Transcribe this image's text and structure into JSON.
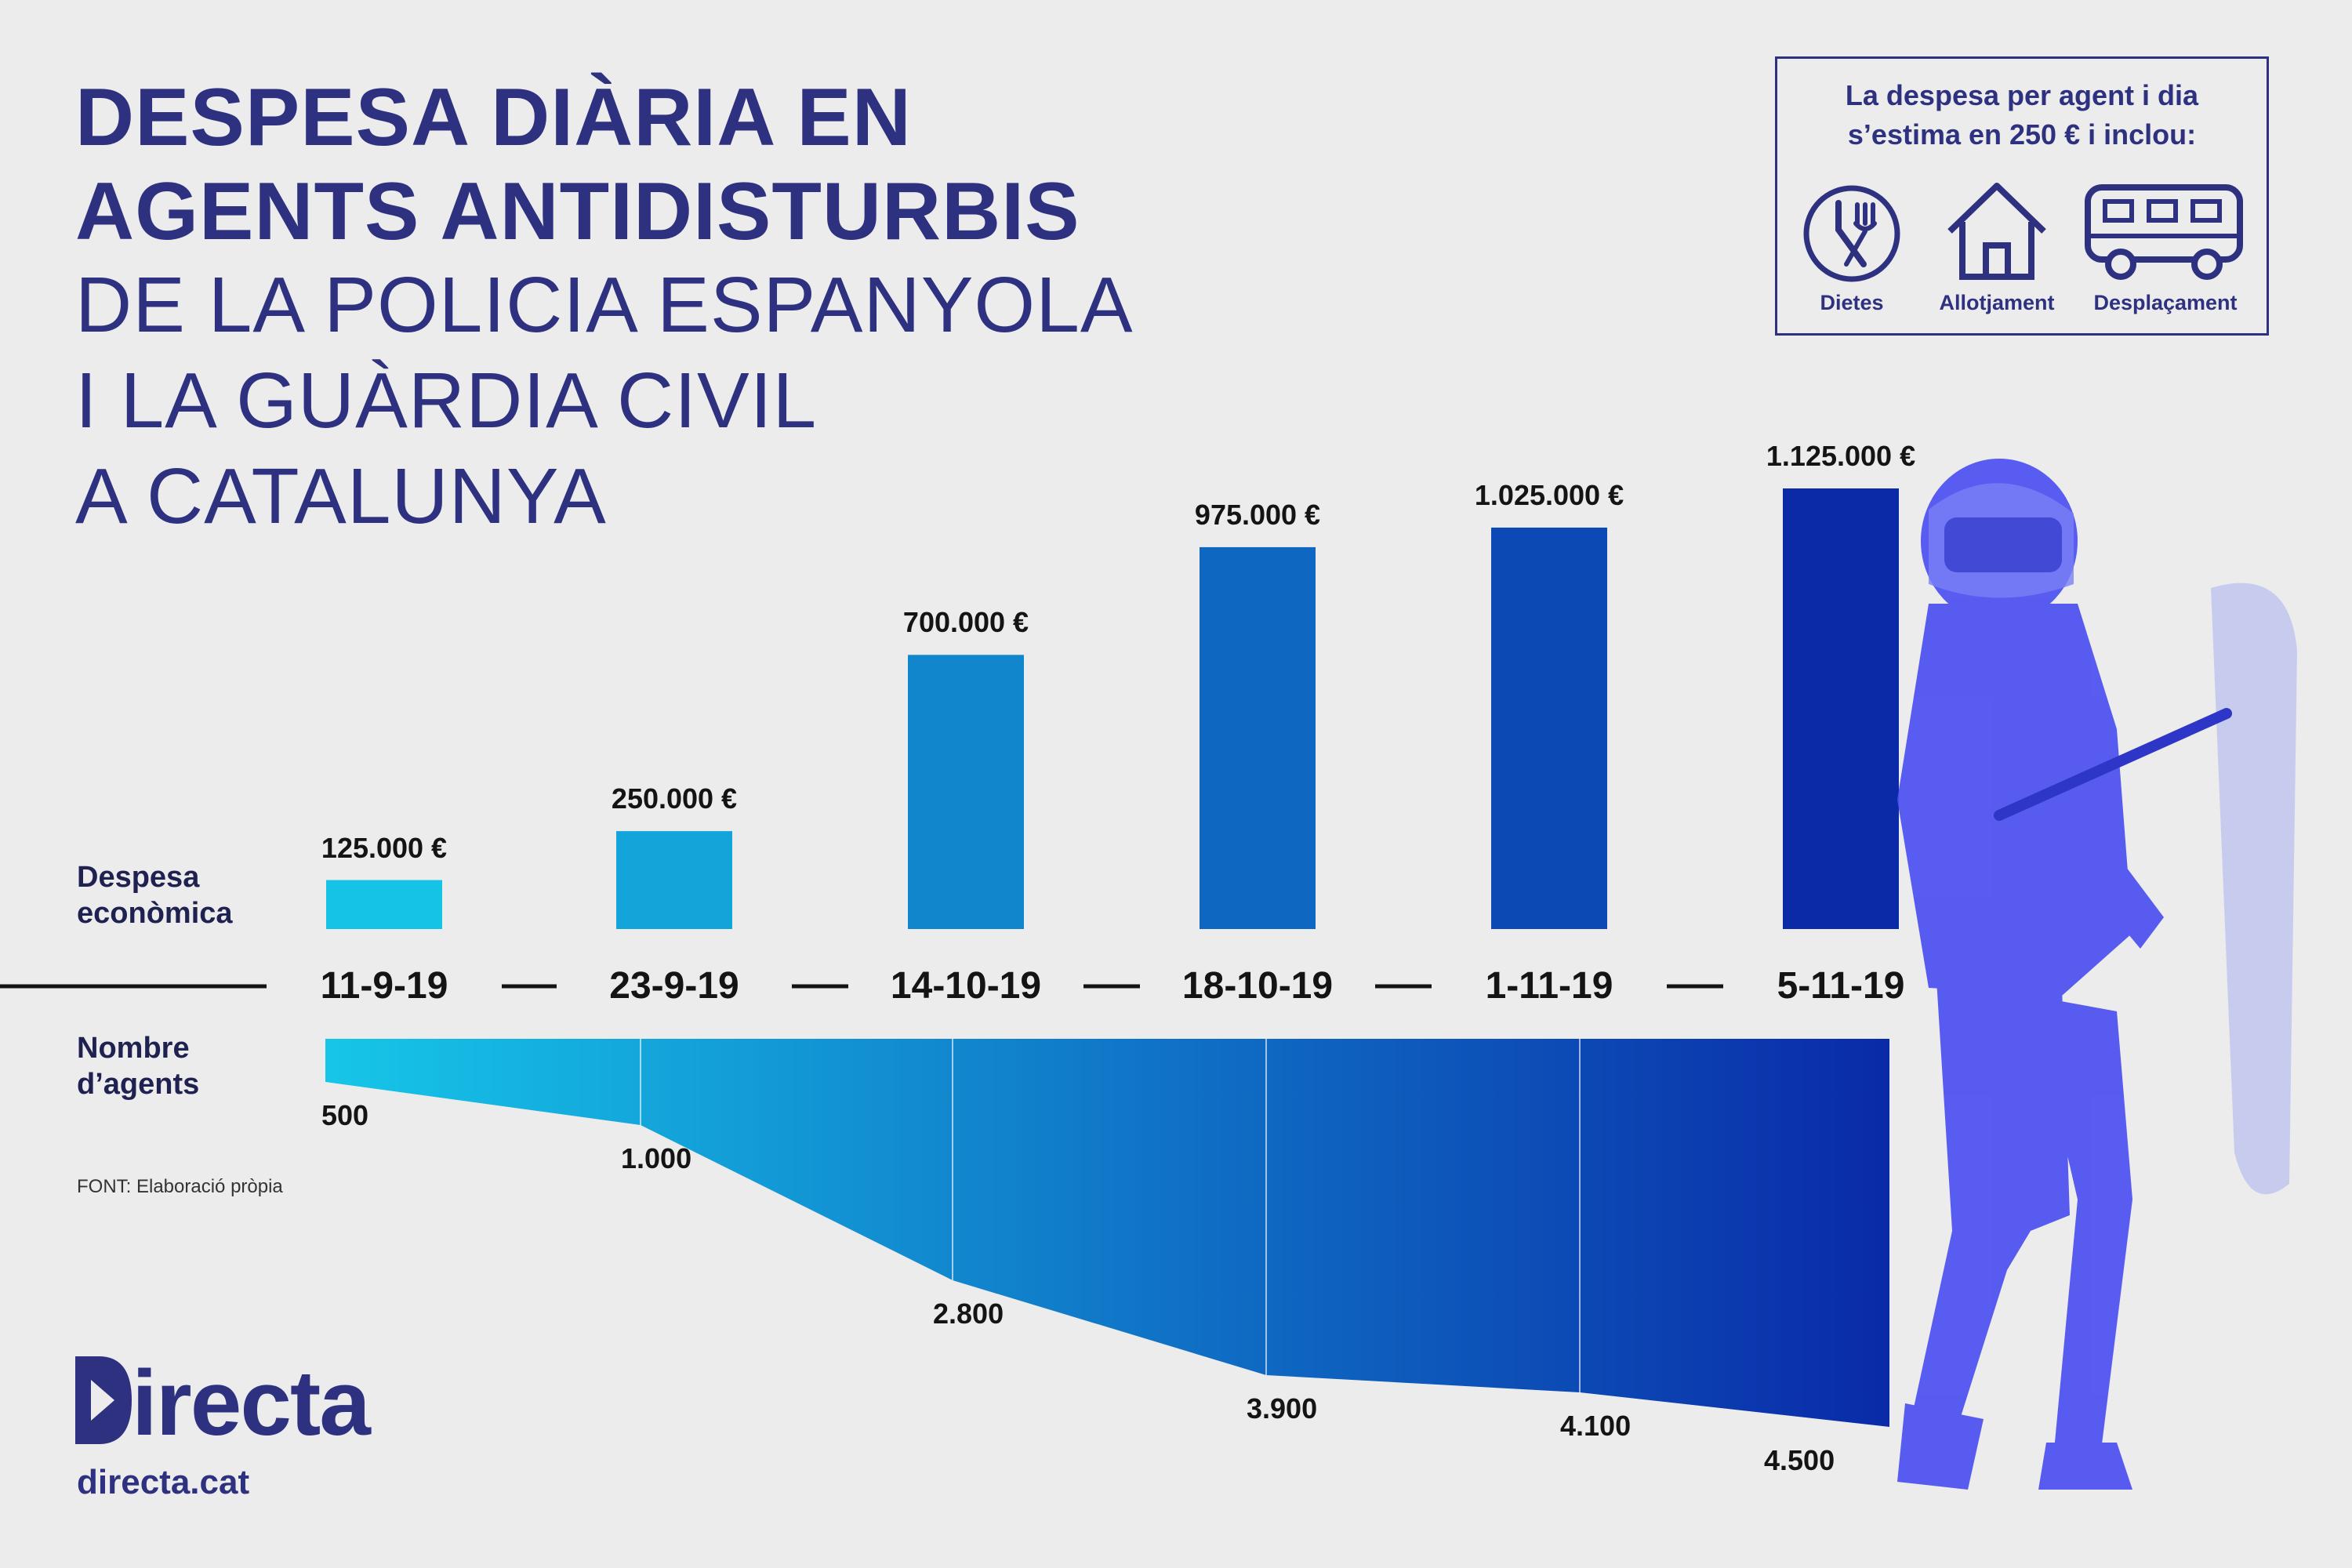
{
  "title": {
    "line1": "DESPESA DIÀRIA EN",
    "line2": "AGENTS ANTIDISTURBIS",
    "line3": "DE LA POLICIA ESPANYOLA",
    "line4": "I LA GUÀRDIA CIVIL",
    "line5": "A CATALUNYA"
  },
  "info_box": {
    "text_line1": "La despesa per agent i dia",
    "text_line2": "s’estima en 250 € i inclou:",
    "items": [
      {
        "label": "Dietes",
        "icon": "cutlery-icon"
      },
      {
        "label": "Allotjament",
        "icon": "house-icon"
      },
      {
        "label": "Desplaçament",
        "icon": "van-icon"
      }
    ]
  },
  "row_labels": {
    "expense_line1": "Despesa",
    "expense_line2": "econòmica",
    "agents_line1": "Nombre",
    "agents_line2": "d’agents"
  },
  "source": "FONT: Elaboració pròpia",
  "brand": {
    "name": "irecta",
    "url": "directa.cat"
  },
  "colors": {
    "light_blue": "#15c3e6",
    "dark_blue": "#0a2aa8",
    "text_blue": "#2e3180",
    "background": "#ececec"
  },
  "chart_data": {
    "type": "bar",
    "title": "DESPESA DIÀRIA EN AGENTS ANTIDISTURBIS DE LA POLICIA ESPANYOLA I LA GUÀRDIA CIVIL A CATALUNYA",
    "categories": [
      "11-9-19",
      "23-9-19",
      "14-10-19",
      "18-10-19",
      "1-11-19",
      "5-11-19"
    ],
    "series": [
      {
        "name": "Despesa econòmica",
        "values": [
          125000,
          250000,
          700000,
          975000,
          1025000,
          1125000
        ],
        "labels": [
          "125.000 €",
          "250.000 €",
          "700.000 €",
          "975.000 €",
          "1.025.000 €",
          "1.125.000 €"
        ]
      },
      {
        "name": "Nombre d’agents",
        "values": [
          500,
          1000,
          2800,
          3900,
          4100,
          4500
        ],
        "labels": [
          "500",
          "1.000",
          "2.800",
          "3.900",
          "4.100",
          "4.500"
        ]
      }
    ],
    "ylim_expense": [
      0,
      1125000
    ],
    "ylim_agents": [
      0,
      4500
    ]
  }
}
